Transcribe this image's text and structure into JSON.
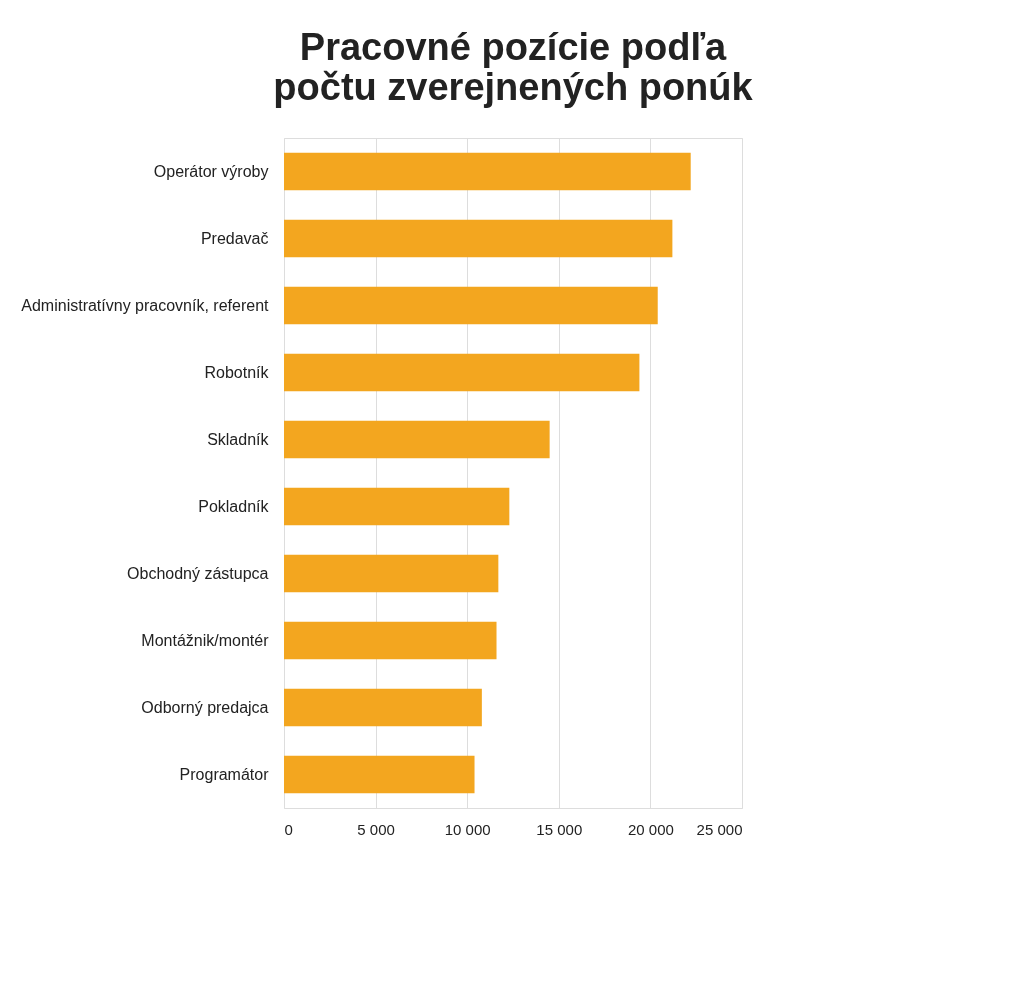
{
  "chart_data": {
    "type": "bar",
    "orientation": "horizontal",
    "title": "Pracovné pozície podľa počtu zverejnených ponúk",
    "categories": [
      "Operátor výroby",
      "Predavač",
      "Administratívny pracovník, referent",
      "Robotník",
      "Skladník",
      "Pokladník",
      "Obchodný zástupca",
      "Montážnik/montér",
      "Odborný predajca",
      "Programátor"
    ],
    "values": [
      22200,
      21200,
      20400,
      19400,
      14500,
      12300,
      11700,
      11600,
      10800,
      10400
    ],
    "color": "#f3a61f",
    "xlim": [
      0,
      25000
    ],
    "xticks": [
      0,
      {
        "value": 5000,
        "label": "5 000"
      },
      {
        "value": 10000,
        "label": "10 000"
      },
      {
        "value": 15000,
        "label": "15 000"
      },
      {
        "value": 20000,
        "label": "20 000"
      },
      {
        "value": 25000,
        "label": "25 000"
      }
    ],
    "grid": "x"
  }
}
